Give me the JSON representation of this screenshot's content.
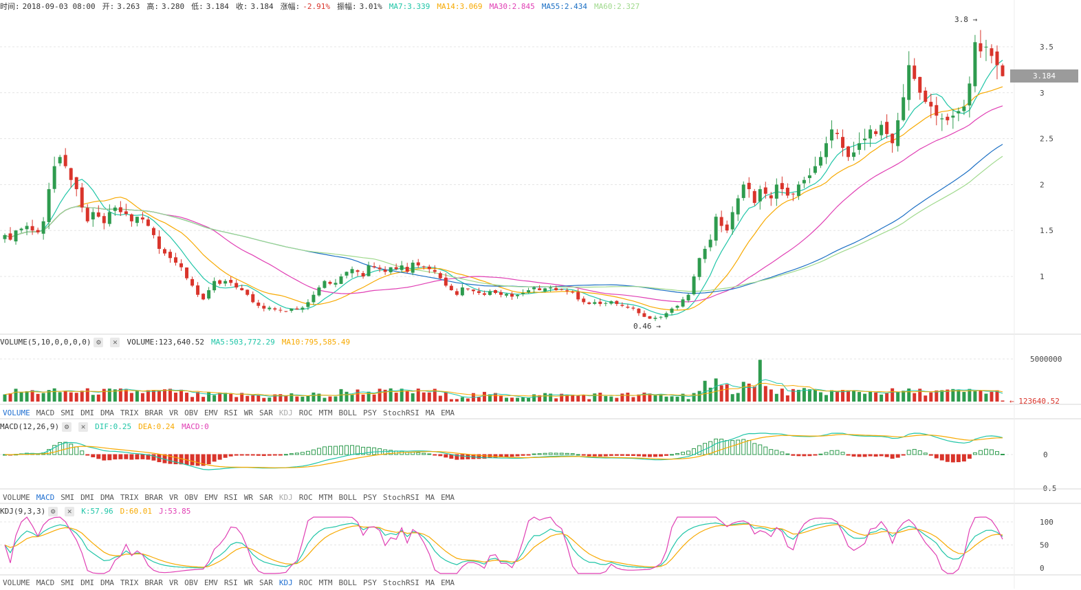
{
  "header": {
    "time_label": "时间:",
    "time": "2018-09-03 08:00",
    "open_label": "开:",
    "open": "3.263",
    "high_label": "高:",
    "high": "3.280",
    "low_label": "低:",
    "low": "3.184",
    "close_label": "收:",
    "close": "3.184",
    "change_label": "涨幅:",
    "change": "-2.91%",
    "amp_label": "振幅:",
    "amp": "3.01%",
    "ma": [
      {
        "label": "MA7:3.339",
        "color": "#1fc5a7"
      },
      {
        "label": "MA14:3.069",
        "color": "#f7a900"
      },
      {
        "label": "MA30:2.845",
        "color": "#e03fb4"
      },
      {
        "label": "MA55:2.434",
        "color": "#1b6fc4"
      },
      {
        "label": "MA60:2.327",
        "color": "#9fd98c"
      }
    ]
  },
  "colors": {
    "up": "#d9342b",
    "down": "#2e9b4e",
    "grid": "#e4e4e4",
    "axis": "#444444"
  },
  "price_badge": "3.184",
  "annotations": {
    "high": "3.8 →",
    "low": "0.46 →"
  },
  "volume_panel": {
    "title": "VOLUME(5,10,0,0,0,0)",
    "value": "VOLUME:123,640.52",
    "ma5": "MA5:503,772.29",
    "ma10": "MA10:795,585.49",
    "current_label": "← 123640.52"
  },
  "macd_panel": {
    "title": "MACD(12,26,9)",
    "dif": "DIF:0.25",
    "dea": "DEA:0.24",
    "macd": "MACD:0"
  },
  "kdj_panel": {
    "title": "KDJ(9,3,3)",
    "k": "K:57.96",
    "d": "D:60.01",
    "j": "J:53.85"
  },
  "tabs": [
    "VOLUME",
    "MACD",
    "SMI",
    "DMI",
    "DMA",
    "TRIX",
    "BRAR",
    "VR",
    "OBV",
    "EMV",
    "RSI",
    "WR",
    "SAR",
    "KDJ",
    "ROC",
    "MTM",
    "BOLL",
    "PSY",
    "StochRSI",
    "MA",
    "EMA"
  ],
  "tab_states": [
    {
      "active": "VOLUME"
    },
    {
      "active": "MACD"
    },
    {
      "active": "KDJ"
    }
  ],
  "chart_data": [
    {
      "type": "candlestick",
      "series": [
        {
          "name": "MA7",
          "color": "#1fc5a7"
        },
        {
          "name": "MA14",
          "color": "#f7a900"
        },
        {
          "name": "MA30",
          "color": "#e03fb4"
        },
        {
          "name": "MA55",
          "color": "#1b6fc4"
        },
        {
          "name": "MA60",
          "color": "#9fd98c"
        }
      ],
      "close": [
        1.45,
        1.4,
        1.5,
        1.52,
        1.55,
        1.5,
        1.48,
        1.6,
        1.95,
        2.2,
        2.3,
        2.2,
        2.05,
        1.95,
        1.75,
        1.6,
        1.7,
        1.65,
        1.58,
        1.7,
        1.75,
        1.7,
        1.68,
        1.6,
        1.65,
        1.62,
        1.55,
        1.45,
        1.3,
        1.25,
        1.2,
        1.15,
        1.1,
        0.98,
        0.9,
        0.8,
        0.75,
        0.85,
        0.95,
        0.92,
        0.95,
        0.93,
        0.88,
        0.85,
        0.8,
        0.72,
        0.68,
        0.65,
        0.66,
        0.64,
        0.63,
        0.62,
        0.65,
        0.64,
        0.66,
        0.72,
        0.8,
        0.88,
        0.95,
        0.92,
        0.93,
        1.0,
        1.05,
        1.08,
        1.05,
        1.0,
        1.12,
        1.1,
        1.08,
        1.05,
        1.1,
        1.08,
        1.12,
        1.05,
        1.15,
        1.12,
        1.1,
        1.08,
        1.05,
        0.98,
        0.9,
        0.85,
        0.8,
        0.88,
        0.86,
        0.84,
        0.82,
        0.8,
        0.84,
        0.82,
        0.8,
        0.81,
        0.78,
        0.8,
        0.82,
        0.85,
        0.88,
        0.85,
        0.87,
        0.88,
        0.85,
        0.86,
        0.84,
        0.83,
        0.75,
        0.72,
        0.7,
        0.72,
        0.7,
        0.71,
        0.73,
        0.7,
        0.68,
        0.66,
        0.65,
        0.6,
        0.56,
        0.54,
        0.55,
        0.56,
        0.6,
        0.65,
        0.68,
        0.75,
        0.8,
        1.0,
        1.2,
        1.3,
        1.4,
        1.65,
        1.55,
        1.5,
        1.7,
        1.85,
        2.0,
        1.95,
        1.8,
        1.95,
        1.9,
        1.85,
        2.0,
        1.95,
        1.88,
        1.9,
        2.0,
        2.05,
        2.1,
        2.2,
        2.3,
        2.45,
        2.6,
        2.55,
        2.4,
        2.3,
        2.35,
        2.45,
        2.5,
        2.6,
        2.55,
        2.65,
        2.55,
        2.45,
        2.7,
        2.95,
        3.3,
        3.15,
        3.0,
        2.9,
        2.85,
        2.75,
        2.72,
        2.7,
        2.75,
        2.8,
        2.85,
        3.1,
        3.55,
        3.45,
        3.5,
        3.4,
        3.3,
        3.18
      ]
    },
    {
      "type": "bar",
      "name": "VOLUME",
      "yticks": [
        "5000000"
      ]
    },
    {
      "type": "bar",
      "name": "MACD",
      "series": [
        {
          "name": "DIF"
        },
        {
          "name": "DEA"
        }
      ],
      "yticks": [
        "0",
        "-0.5"
      ]
    },
    {
      "type": "line",
      "name": "KDJ",
      "series": [
        {
          "name": "K"
        },
        {
          "name": "D"
        },
        {
          "name": "J"
        }
      ],
      "yticks": [
        "100",
        "50",
        "0"
      ]
    }
  ],
  "price_ticks": [
    "3.5",
    "3",
    "2.5",
    "2",
    "1.5",
    "1"
  ]
}
